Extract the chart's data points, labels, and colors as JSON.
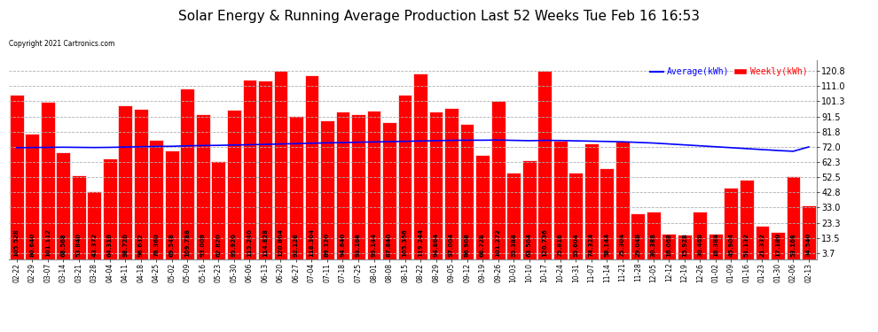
{
  "title": "Solar Energy & Running Average Production Last 52 Weeks Tue Feb 16 16:53",
  "copyright": "Copyright 2021 Cartronics.com",
  "categories": [
    "02-22",
    "02-29",
    "03-07",
    "03-14",
    "03-21",
    "03-28",
    "04-04",
    "04-11",
    "04-18",
    "04-25",
    "05-02",
    "05-09",
    "05-16",
    "05-23",
    "05-30",
    "06-06",
    "06-13",
    "06-20",
    "06-27",
    "07-04",
    "07-11",
    "07-18",
    "07-25",
    "08-01",
    "08-08",
    "08-15",
    "08-22",
    "08-29",
    "09-05",
    "09-12",
    "09-19",
    "09-26",
    "10-03",
    "10-10",
    "10-17",
    "10-24",
    "10-31",
    "11-07",
    "11-14",
    "11-21",
    "11-28",
    "12-05",
    "12-12",
    "12-19",
    "12-26",
    "01-02",
    "01-09",
    "01-16",
    "01-23",
    "01-30",
    "02-06",
    "02-13"
  ],
  "weekly_values": [
    105.528,
    80.64,
    101.112,
    68.568,
    53.84,
    43.372,
    64.316,
    98.72,
    96.632,
    76.36,
    69.548,
    109.788,
    93.008,
    62.82,
    95.92,
    115.24,
    114.828,
    120.804,
    92.128,
    118.304,
    89.12,
    94.64,
    93.168,
    95.144,
    87.84,
    105.356,
    119.244,
    94.864,
    97.004,
    86.908,
    66.728,
    101.272,
    55.388,
    63.504,
    120.736,
    75.816,
    55.604,
    74.324,
    58.144,
    75.304,
    29.048,
    30.388,
    16.068,
    15.928,
    30.468,
    16.384,
    45.904,
    51.132,
    21.332,
    17.18,
    53.168,
    34.54
  ],
  "average_values": [
    71.5,
    71.6,
    71.7,
    71.8,
    71.7,
    71.6,
    71.7,
    71.9,
    72.1,
    72.3,
    72.4,
    72.7,
    72.9,
    73.0,
    73.2,
    73.4,
    73.6,
    73.9,
    74.1,
    74.4,
    74.6,
    74.8,
    75.0,
    75.2,
    75.4,
    75.6,
    75.8,
    76.0,
    76.2,
    76.3,
    76.3,
    76.4,
    76.2,
    76.0,
    76.2,
    76.1,
    75.9,
    75.7,
    75.5,
    75.3,
    74.9,
    74.5,
    73.9,
    73.3,
    72.7,
    72.1,
    71.5,
    70.9,
    70.3,
    69.7,
    69.2,
    72.0
  ],
  "bar_color": "#ff0000",
  "bar_edge_color": "#ffffff",
  "line_color": "#0000ff",
  "background_color": "#ffffff",
  "plot_bg_color": "#ffffff",
  "grid_color": "#b0b0b0",
  "title_fontsize": 11,
  "yticks": [
    3.7,
    13.5,
    23.3,
    33.0,
    42.8,
    52.5,
    62.3,
    72.0,
    81.8,
    91.5,
    101.3,
    111.0,
    120.8
  ],
  "ylim": [
    0,
    128
  ],
  "legend_avg_color": "#0000ff",
  "legend_weekly_color": "#ff0000",
  "legend_avg_label": "Average(kWh)",
  "legend_weekly_label": "Weekly(kWh)",
  "label_fontsize": 5.0,
  "xlabel_fontsize": 5.5,
  "ylabel_fontsize": 7.0
}
